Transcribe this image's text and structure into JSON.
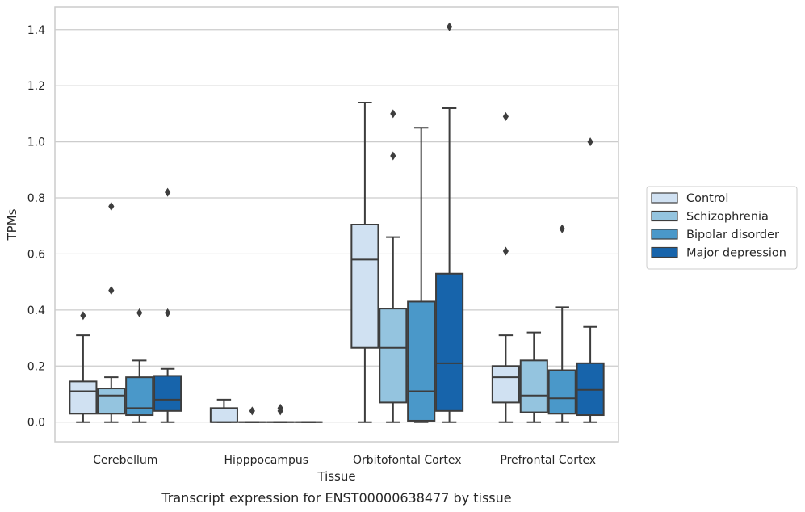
{
  "chart_data": {
    "type": "box",
    "title": "Transcript expression for ENST00000638477 by tissue",
    "xlabel": "Tissue",
    "ylabel": "TPMs",
    "ylim": [
      -0.07,
      1.48
    ],
    "yticks": [
      0.0,
      0.2,
      0.4,
      0.6,
      0.8,
      1.0,
      1.2,
      1.4
    ],
    "ytick_labels": [
      "0.0",
      "0.2",
      "0.4",
      "0.6",
      "0.8",
      "1.0",
      "1.2",
      "1.4"
    ],
    "grid": "horizontal",
    "legend_position": "right",
    "categories": [
      "Cerebellum",
      "Hipppocampus",
      "Orbitofontal Cortex",
      "Prefrontal Cortex"
    ],
    "series": [
      {
        "name": "Control",
        "color": "#d0e1f2",
        "boxes": [
          {
            "whislo": 0.0,
            "q1": 0.03,
            "med": 0.11,
            "q3": 0.145,
            "whishi": 0.31,
            "fliers": [
              0.38
            ]
          },
          {
            "whislo": 0.0,
            "q1": 0.0,
            "med": 0.0,
            "q3": 0.05,
            "whishi": 0.08,
            "fliers": []
          },
          {
            "whislo": 0.0,
            "q1": 0.265,
            "med": 0.58,
            "q3": 0.705,
            "whishi": 1.14,
            "fliers": []
          },
          {
            "whislo": 0.0,
            "q1": 0.07,
            "med": 0.16,
            "q3": 0.2,
            "whishi": 0.31,
            "fliers": [
              0.61,
              1.09
            ]
          }
        ]
      },
      {
        "name": "Schizophrenia",
        "color": "#94c4df",
        "boxes": [
          {
            "whislo": 0.0,
            "q1": 0.03,
            "med": 0.095,
            "q3": 0.12,
            "whishi": 0.16,
            "fliers": [
              0.47,
              0.77
            ]
          },
          {
            "whislo": 0.0,
            "q1": 0.0,
            "med": 0.0,
            "q3": 0.0,
            "whishi": 0.0,
            "fliers": [
              0.04
            ]
          },
          {
            "whislo": 0.0,
            "q1": 0.07,
            "med": 0.265,
            "q3": 0.405,
            "whishi": 0.66,
            "fliers": [
              0.95,
              1.1
            ]
          },
          {
            "whislo": 0.0,
            "q1": 0.035,
            "med": 0.095,
            "q3": 0.22,
            "whishi": 0.32,
            "fliers": []
          }
        ]
      },
      {
        "name": "Bipolar disorder",
        "color": "#4a98c9",
        "boxes": [
          {
            "whislo": 0.0,
            "q1": 0.025,
            "med": 0.05,
            "q3": 0.16,
            "whishi": 0.22,
            "fliers": [
              0.39
            ]
          },
          {
            "whislo": 0.0,
            "q1": 0.0,
            "med": 0.0,
            "q3": 0.0,
            "whishi": 0.0,
            "fliers": [
              0.04,
              0.05
            ]
          },
          {
            "whislo": 0.0,
            "q1": 0.005,
            "med": 0.11,
            "q3": 0.43,
            "whishi": 1.05,
            "fliers": []
          },
          {
            "whislo": 0.0,
            "q1": 0.03,
            "med": 0.085,
            "q3": 0.185,
            "whishi": 0.41,
            "fliers": [
              0.69
            ]
          }
        ]
      },
      {
        "name": "Major depression",
        "color": "#1764ab",
        "boxes": [
          {
            "whislo": 0.0,
            "q1": 0.04,
            "med": 0.08,
            "q3": 0.165,
            "whishi": 0.19,
            "fliers": [
              0.39,
              0.82
            ]
          },
          {
            "whislo": 0.0,
            "q1": 0.0,
            "med": 0.0,
            "q3": 0.0,
            "whishi": 0.0,
            "fliers": []
          },
          {
            "whislo": 0.0,
            "q1": 0.04,
            "med": 0.21,
            "q3": 0.53,
            "whishi": 1.12,
            "fliers": [
              1.41
            ]
          },
          {
            "whislo": 0.0,
            "q1": 0.025,
            "med": 0.115,
            "q3": 0.21,
            "whishi": 0.34,
            "fliers": [
              1.0
            ]
          }
        ]
      }
    ]
  }
}
